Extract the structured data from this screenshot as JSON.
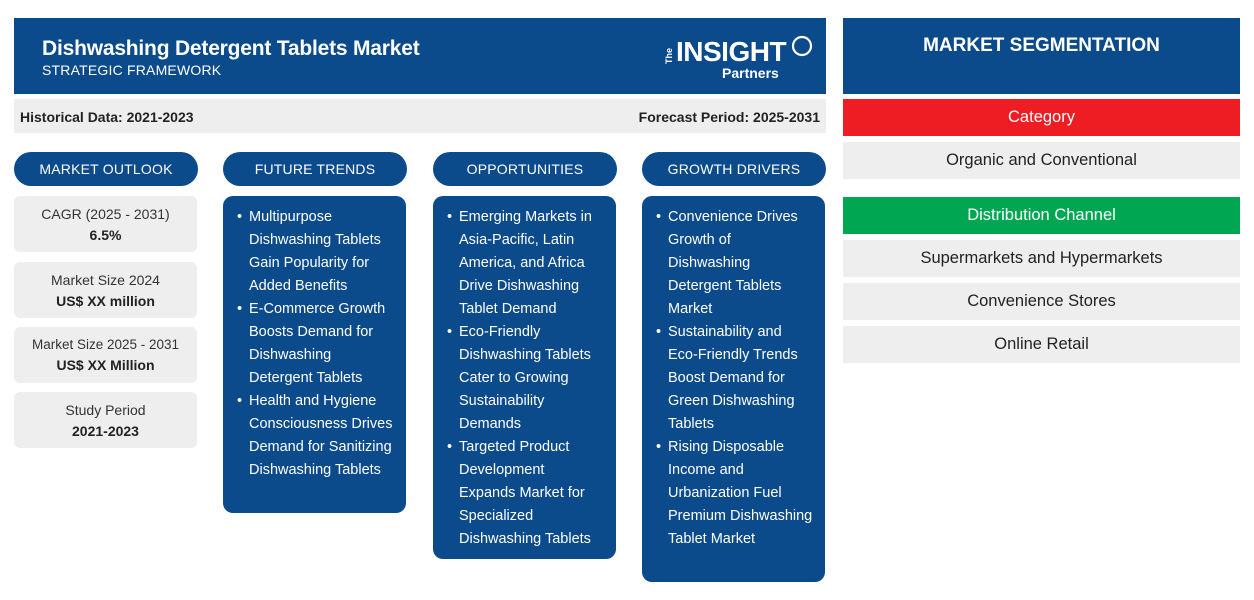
{
  "header": {
    "title": "Dishwashing Detergent Tablets Market",
    "subtitle": "STRATEGIC FRAMEWORK",
    "logo": {
      "the": "The",
      "main": "INSIGHT",
      "partners": "Partners"
    }
  },
  "period": {
    "historical": "Historical Data: 2021-2023",
    "forecast": "Forecast Period: 2025-2031"
  },
  "columns": {
    "outlook": "MARKET OUTLOOK",
    "trends": "FUTURE TRENDS",
    "opportunities": "OPPORTUNITIES",
    "drivers": "GROWTH DRIVERS"
  },
  "outlook": [
    {
      "label": "CAGR (2025 - 2031)",
      "value": "6.5%"
    },
    {
      "label": "Market Size 2024",
      "value": "US$ XX million"
    },
    {
      "label": "Market Size 2025 - 2031",
      "value": "US$ XX Million"
    },
    {
      "label": "Study Period",
      "value": "2021-2023"
    }
  ],
  "trends": [
    "Multipurpose Dishwashing Tablets Gain Popularity for Added Benefits",
    "E-Commerce Growth Boosts Demand for Dishwashing Detergent Tablets",
    "Health and Hygiene Consciousness Drives Demand for Sanitizing Dishwashing Tablets"
  ],
  "opportunities": [
    "Emerging Markets in Asia-Pacific, Latin America, and Africa Drive Dishwashing Tablet Demand",
    "Eco-Friendly Dishwashing Tablets Cater to Growing Sustainability Demands",
    "Targeted Product Development Expands Market for Specialized Dishwashing Tablets"
  ],
  "drivers": [
    "Convenience Drives Growth of Dishwashing Detergent Tablets Market",
    "Sustainability and Eco-Friendly Trends Boost Demand for Green Dishwashing Tablets",
    "Rising Disposable Income and Urbanization Fuel Premium Dishwashing Tablet Market"
  ],
  "segmentation": {
    "title": "MARKET SEGMENTATION",
    "category": {
      "label": "Category",
      "color": "#ee1d24",
      "items": [
        "Organic and Conventional"
      ]
    },
    "channel": {
      "label": "Distribution Channel",
      "color": "#00a651",
      "items": [
        "Supermarkets and Hypermarkets",
        "Convenience Stores",
        "Online Retail"
      ]
    }
  },
  "colors": {
    "navy": "#0b4a8b",
    "grey": "#eeeeee"
  }
}
